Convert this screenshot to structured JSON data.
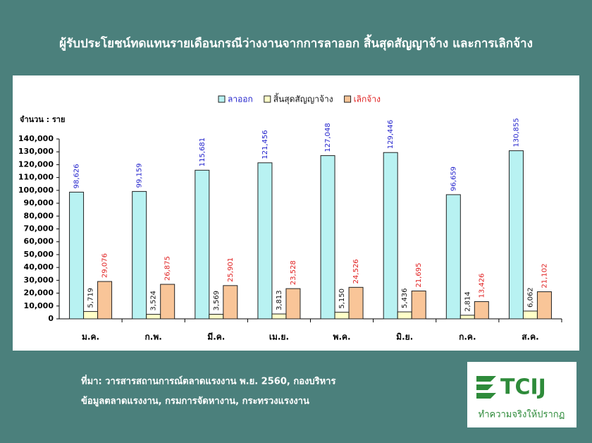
{
  "chart_data": {
    "type": "bar",
    "title": "ผู้รับประโยชน์ทดแทนรายเดือนกรณีว่างงานจากการลาออก สิ้นสุดสัญญาจ้าง และการเลิกจ้าง",
    "y_label": "จำนวน : ราย",
    "categories": [
      "ม.ค.",
      "ก.พ.",
      "มี.ค.",
      "เม.ย.",
      "พ.ค.",
      "มิ.ย.",
      "ก.ค.",
      "ส.ค."
    ],
    "series": [
      {
        "name": "ลาออก",
        "color": "#b8f2f2",
        "label_color": "#2222cc",
        "values": [
          98626,
          99159,
          115681,
          121456,
          127048,
          129446,
          96659,
          130855
        ],
        "value_labels": [
          "98,626",
          "99,159",
          "115,681",
          "121,456",
          "127,048",
          "129,446",
          "96,659",
          "130,855"
        ]
      },
      {
        "name": "สิ้นสุดสัญญาจ้าง",
        "color": "#ffffc8",
        "label_color": "#111111",
        "values": [
          5719,
          3524,
          3569,
          3813,
          5150,
          5436,
          2814,
          6062
        ],
        "value_labels": [
          "5,719",
          "3,524",
          "3,569",
          "3,813",
          "5,150",
          "5,436",
          "2,814",
          "6,062"
        ]
      },
      {
        "name": "เลิกจ้าง",
        "color": "#f9c598",
        "label_color": "#e02020",
        "values": [
          29076,
          26875,
          25901,
          23528,
          24526,
          21695,
          13426,
          21102
        ],
        "value_labels": [
          "29,076",
          "26,875",
          "25,901",
          "23,528",
          "24,526",
          "21,695",
          "13,426",
          "21,102"
        ]
      }
    ],
    "ylim": [
      0,
      140000
    ],
    "yticks": [
      0,
      {
        "value": 10000,
        "label": "10,000"
      },
      {
        "value": 20000,
        "label": "20,000"
      },
      {
        "value": 30000,
        "label": "30,000"
      },
      {
        "value": 40000,
        "label": "40,000"
      },
      {
        "value": 50000,
        "label": "50,000"
      },
      {
        "value": 60000,
        "label": "60,000"
      },
      {
        "value": 70000,
        "label": "70,000"
      },
      {
        "value": 80000,
        "label": "80,000"
      },
      {
        "value": 90000,
        "label": "90,000"
      },
      {
        "value": 100000,
        "label": "100,000"
      },
      {
        "value": 110000,
        "label": "110,000"
      },
      {
        "value": 120000,
        "label": "120,000"
      },
      {
        "value": 130000,
        "label": "130,000"
      },
      {
        "value": 140000,
        "label": "140,000"
      }
    ],
    "grid": false,
    "legend": "top"
  },
  "source": {
    "line1": "ที่มา: วารสารสถานการณ์ตลาดแรงงาน พ.ย. 2560, กองบริหาร",
    "line2": "ข้อมูลตลาดแรงงาน, กรมการจัดหางาน, กระทรวงแรงงาน"
  },
  "logo": {
    "name": "TCIJ",
    "tagline": "ทำความจริงให้ปรากฏ"
  }
}
